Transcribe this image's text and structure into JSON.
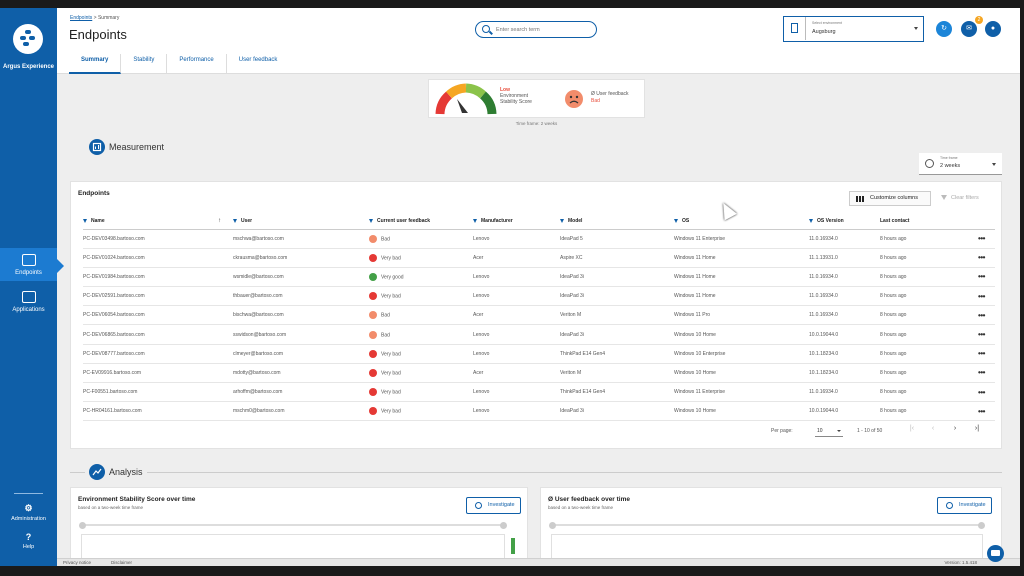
{
  "sidebar": {
    "brand": "Argus Experience",
    "items": [
      {
        "label": "Endpoints",
        "icon": "monitor-icon",
        "active": true
      },
      {
        "label": "Applications",
        "icon": "apps-icon",
        "active": false
      }
    ],
    "bottom": [
      {
        "label": "Administration",
        "icon": "gear-icon",
        "glyph": "⚙"
      },
      {
        "label": "Help",
        "icon": "help-icon",
        "glyph": "?"
      }
    ]
  },
  "header": {
    "breadcrumb_link": "Endpoints",
    "breadcrumb_sep": " > ",
    "breadcrumb_current": "Summary",
    "title": "Endpoints",
    "tabs": [
      "Summary",
      "Stability",
      "Performance",
      "User feedback"
    ],
    "search_placeholder": "Enter search term",
    "environment_label": "Select environment",
    "environment_value": "Augsburg",
    "notification_count": "2"
  },
  "score": {
    "level": "Low",
    "label": "Environment Stability Score",
    "feedback_label": "Ø User feedback",
    "feedback_value": "Bad",
    "timeframe_note": "Time frame: 2 weeks"
  },
  "measurement": {
    "title": "Measurement",
    "timeframe_label": "Time frame",
    "timeframe_value": "2 weeks"
  },
  "table": {
    "title": "Endpoints",
    "customize_label": "Customize columns",
    "clear_filters_label": "Clear filters",
    "columns": [
      "Name",
      "User",
      "Current user feedback",
      "Manufacturer",
      "Model",
      "OS",
      "OS Version",
      "Last contact"
    ],
    "rows": [
      [
        "PC-DEV03498.bartoso.com",
        "mschwa@bartoso.com",
        "Bad",
        "Lenovo",
        "IdeaPad 5",
        "Windows 11 Enterprise",
        "11.0.16934.0",
        "8 hours ago"
      ],
      [
        "PC-DEV01024.bartoso.com",
        "ckrausma@bartoso.com",
        "Very bad",
        "Acer",
        "Aspire XC",
        "Windows 11 Home",
        "11.1.13931.0",
        "8 hours ago"
      ],
      [
        "PC-DEV01984.bartoso.com",
        "wsmidle@bartoso.com",
        "Very good",
        "Lenovo",
        "IdeaPad 3i",
        "Windows 11 Home",
        "11.0.16934.0",
        "8 hours ago"
      ],
      [
        "PC-DEV02591.bartoso.com",
        "thbauer@bartoso.com",
        "Very bad",
        "Lenovo",
        "IdeaPad 3i",
        "Windows 11 Home",
        "11.0.16934.0",
        "8 hours ago"
      ],
      [
        "PC-DEV06054.bartoso.com",
        "bischwa@bartoso.com",
        "Bad",
        "Acer",
        "Veriton M",
        "Windows 11 Pro",
        "11.0.16934.0",
        "8 hours ago"
      ],
      [
        "PC-DEV06865.bartoso.com",
        "sswidson@bartoso.com",
        "Bad",
        "Lenovo",
        "IdeaPad 3i",
        "Windows 10 Home",
        "10.0.19044.0",
        "8 hours ago"
      ],
      [
        "PC-DEV08777.bartoso.com",
        "clmeyer@bartoso.com",
        "Very bad",
        "Lenovo",
        "ThinkPad E14 Gen4",
        "Windows 10 Enterprise",
        "10.1.18234.0",
        "8 hours ago"
      ],
      [
        "PC-EV09916.bartoso.com",
        "mdotty@bartoso.com",
        "Very bad",
        "Acer",
        "Veriton M",
        "Windows 10 Home",
        "10.1.18234.0",
        "8 hours ago"
      ],
      [
        "PC-F00551.bartoso.com",
        "arhoffm@bartoso.com",
        "Very bad",
        "Lenovo",
        "ThinkPad E14 Gen4",
        "Windows 11 Enterprise",
        "11.0.16934.0",
        "8 hours ago"
      ],
      [
        "PC-HR04161.bartoso.com",
        "mschm0@bartoso.com",
        "Very bad",
        "Lenovo",
        "IdeaPad 3i",
        "Windows 10 Home",
        "10.0.19044.0",
        "8 hours ago"
      ]
    ],
    "per_page_label": "Per page:",
    "per_page_value": "10",
    "range": "1 - 10 of 50"
  },
  "analysis": {
    "title": "Analysis",
    "cards": [
      {
        "title": "Environment Stability Score over time",
        "subtitle": "based on a two-week time frame",
        "button": "Investigate"
      },
      {
        "title": "Ø User feedback over time",
        "subtitle": "based on a two-week time frame",
        "button": "Investigate"
      }
    ]
  },
  "footer": {
    "privacy": "Privacy notice",
    "disclaimer": "Disclaimer",
    "version": "Version: 1.5.418"
  },
  "colors": {
    "primary": "#0f5fa8",
    "accent": "#1c7bd1",
    "bad": "#f28c6b",
    "very_bad": "#e53935",
    "very_good": "#43a047"
  }
}
